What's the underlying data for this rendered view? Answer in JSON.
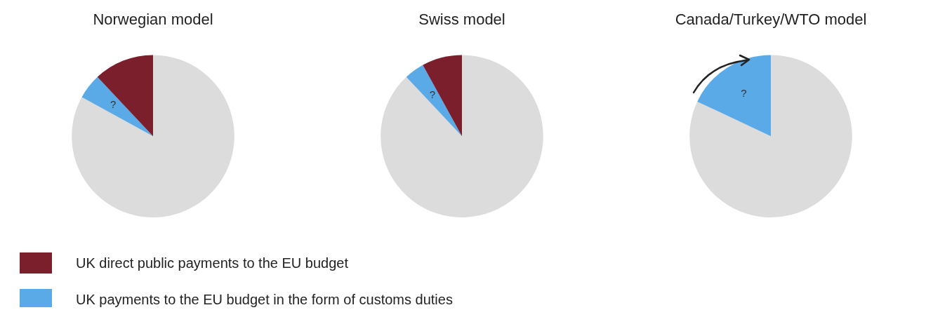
{
  "chart_data": [
    {
      "type": "pie",
      "title": "Norwegian model",
      "categories": [
        null,
        "UK payments to the EU budget in the form of customs duties",
        "UK direct public payments to the EU budget"
      ],
      "values": [
        83,
        5,
        12
      ],
      "colors": [
        "#dcdcdc",
        "#5aaae8",
        "#7a1f2b"
      ],
      "annotations": [
        {
          "text": "?",
          "x": "UK payments to the EU budget in the form of customs duties"
        }
      ],
      "legend": "bottom"
    },
    {
      "type": "pie",
      "title": "Swiss model",
      "categories": [
        null,
        null,
        null
      ],
      "values": [
        88,
        4,
        8
      ],
      "colors": [
        "#dcdcdc",
        "#5aaae8",
        "#7a1f2b"
      ],
      "annotations": [
        "?"
      ]
    },
    {
      "type": "pie",
      "title": "Canada/Turkey/WTO model",
      "categories": [
        null,
        null
      ],
      "values": [
        82,
        18
      ],
      "colors": [
        "#dcdcdc",
        "#5aaae8"
      ],
      "annotations": [
        "?"
      ]
    }
  ]
}
